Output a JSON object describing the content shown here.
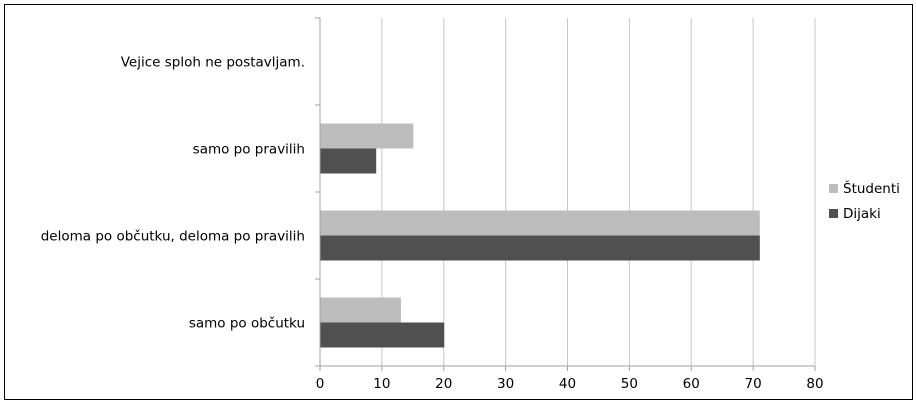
{
  "chart_data": {
    "type": "bar",
    "orientation": "horizontal",
    "categories": [
      "Vejice sploh ne postavljam.",
      "samo po pravilih",
      "deloma po občutku, deloma po pravilih",
      "samo po občutku"
    ],
    "series": [
      {
        "name": "Študenti",
        "color": "#bdbdbd",
        "values": [
          0,
          15,
          71,
          13
        ]
      },
      {
        "name": "Dijaki",
        "color": "#505050",
        "values": [
          0,
          9,
          71,
          20
        ]
      }
    ],
    "xlim": [
      0,
      80
    ],
    "xticks": [
      "0",
      "10",
      "20",
      "30",
      "40",
      "50",
      "60",
      "70",
      "80"
    ],
    "title": "",
    "xlabel": "",
    "ylabel": "",
    "grid": "vertical",
    "legend_position": "right"
  }
}
